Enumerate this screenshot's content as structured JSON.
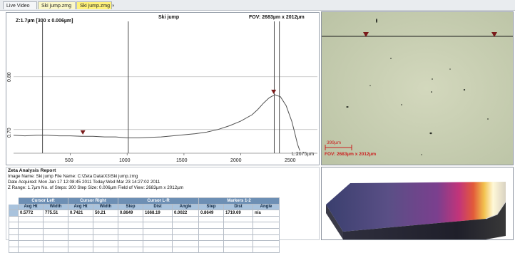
{
  "tabs": [
    {
      "label": "Live Video"
    },
    {
      "label": "Ski jump.zmg"
    },
    {
      "label": "Ski jump.zmg",
      "close": "×"
    }
  ],
  "profile": {
    "z_label": "Z:1.7µm [300 x 0.006µm]",
    "title": "Ski jump",
    "fov": "FOV: 2683µm x 2012µm",
    "corner_label": "L:2675µm",
    "y_ticks": [
      "0.70",
      "0.80"
    ],
    "x_ticks": [
      "500",
      "1000",
      "1500",
      "2000",
      "2500"
    ]
  },
  "chart_data": {
    "type": "line",
    "title": "Ski jump",
    "xlabel": "",
    "ylabel": "",
    "xlim": [
      0,
      2675
    ],
    "ylim": [
      0.655,
      0.905
    ],
    "series": [
      {
        "x": [
          0,
          100,
          200,
          300,
          400,
          500,
          600,
          700,
          800,
          900,
          1000,
          1100,
          1200,
          1300,
          1400,
          1500,
          1600,
          1700,
          1800,
          1900,
          2000,
          2100,
          2150,
          2200,
          2250,
          2300,
          2350,
          2400,
          2450,
          2480,
          2500,
          2520
        ],
        "y": [
          0.689,
          0.688,
          0.689,
          0.689,
          0.688,
          0.688,
          0.687,
          0.687,
          0.686,
          0.686,
          0.684,
          0.684,
          0.685,
          0.686,
          0.688,
          0.69,
          0.692,
          0.695,
          0.7,
          0.707,
          0.716,
          0.728,
          0.738,
          0.75,
          0.76,
          0.766,
          0.762,
          0.745,
          0.715,
          0.69,
          0.672,
          0.66
        ]
      }
    ],
    "cursor_lines_x": [
      255,
      1010,
      2295,
      2340
    ],
    "markers": [
      {
        "x": 610,
        "y": 0.689
      },
      {
        "x": 2290,
        "y": 0.766
      }
    ]
  },
  "microscope": {
    "scale_label": "399µm",
    "fov_label": "FOV: 2683µm x 2012µm"
  },
  "report": {
    "title": "Zeta Analysis Report",
    "line1": "Image Name:  Ski jump        File Name:      C:\\Zeta Data\\X3\\Ski jump.zmg",
    "line2": "Date Acquired:        Mon Jan 17 12:08:45 2011    Today:Wed Mar 23 14:27:02 2011",
    "line3": "Z Range:        1.7µm No. of Steps: 300    Step Size:        0.006µm         Field of View: 2683µm x 2012µm",
    "groups": [
      "Cursor Left",
      "Cursor Right",
      "Cursor L-R",
      "Markers 1-2"
    ],
    "headers": [
      "Avg Ht",
      "Width",
      "Avg Ht",
      "Width",
      "Step",
      "Dist",
      "Angle",
      "Step",
      "Dist",
      "Angle"
    ],
    "values": [
      "0.5772",
      "775.51",
      "0.7421",
      "50.21",
      "0.8649",
      "1668.19",
      "0.0022",
      "0.8649",
      "1719.69",
      "n/a"
    ]
  },
  "colors": {
    "group_header": "#6d8fb4",
    "column_header": "#a9c3dd",
    "marker": "#7a1a1a",
    "micro_text": "#cc1f1f"
  }
}
